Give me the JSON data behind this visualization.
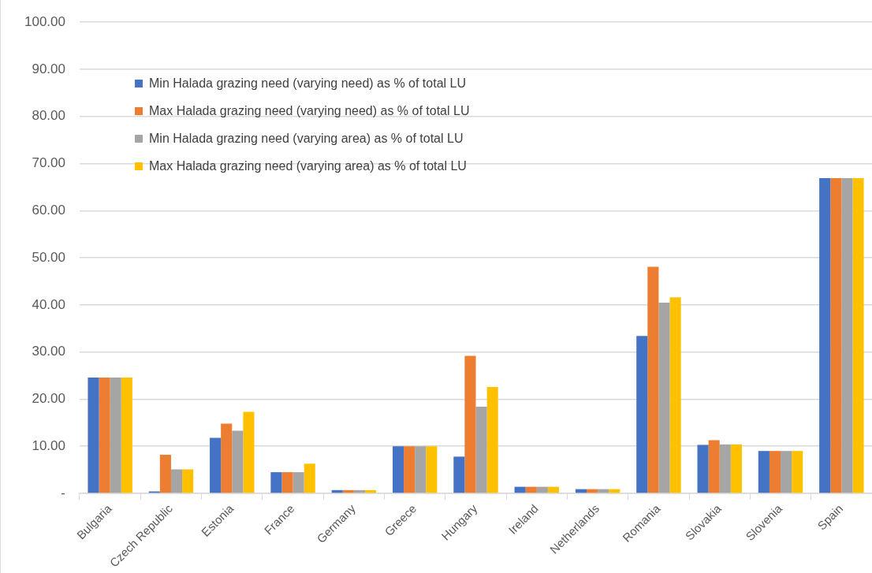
{
  "chart_data": {
    "type": "bar",
    "categories": [
      "Bulgaria",
      "Czech Republic",
      "Estonia",
      "France",
      "Germany",
      "Greece",
      "Hungary",
      "Ireland",
      "Netherlands",
      "Romania",
      "Slovakia",
      "Slovenia",
      "Spain"
    ],
    "series": [
      {
        "name": "Min Halada grazing need (varying need) as % of total LU",
        "color": "#4472c4",
        "values": [
          24.6,
          0.4,
          11.8,
          4.5,
          0.7,
          10.0,
          7.8,
          1.4,
          0.9,
          33.4,
          10.3,
          9.0,
          66.9
        ]
      },
      {
        "name": "Max Halada grazing need (varying need) as % of total LU",
        "color": "#ed7d31",
        "values": [
          24.6,
          8.2,
          14.8,
          4.5,
          0.7,
          10.0,
          29.2,
          1.4,
          0.9,
          48.1,
          11.3,
          9.0,
          66.9
        ]
      },
      {
        "name": "Min Halada grazing need (varying area) as % of total LU",
        "color": "#a5a5a5",
        "values": [
          24.6,
          5.1,
          13.3,
          4.5,
          0.7,
          10.0,
          18.4,
          1.4,
          0.9,
          40.5,
          10.4,
          9.0,
          66.9
        ]
      },
      {
        "name": "Max Halada grazing need (varying area) as % of total LU",
        "color": "#ffc000",
        "values": [
          24.6,
          5.1,
          17.3,
          6.3,
          0.7,
          10.0,
          22.6,
          1.4,
          0.9,
          41.6,
          10.4,
          9.0,
          66.9
        ]
      }
    ],
    "ylim": [
      0,
      100
    ],
    "yticks": [
      {
        "value": 0,
        "label": "-"
      },
      {
        "value": 10,
        "label": "10.00"
      },
      {
        "value": 20,
        "label": "20.00"
      },
      {
        "value": 30,
        "label": "30.00"
      },
      {
        "value": 40,
        "label": "40.00"
      },
      {
        "value": 50,
        "label": "50.00"
      },
      {
        "value": 60,
        "label": "60.00"
      },
      {
        "value": 70,
        "label": "70.00"
      },
      {
        "value": 80,
        "label": "80.00"
      },
      {
        "value": 90,
        "label": "90.00"
      },
      {
        "value": 100,
        "label": "100.00"
      }
    ],
    "grid": "y",
    "legend": "top left"
  }
}
